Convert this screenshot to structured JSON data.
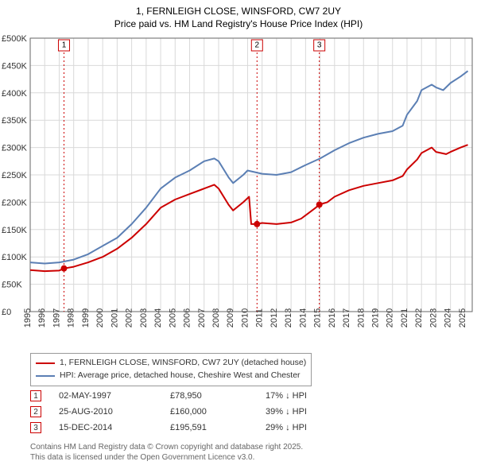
{
  "title_line1": "1, FERNLEIGH CLOSE, WINSFORD, CW7 2UY",
  "title_line2": "Price paid vs. HM Land Registry's House Price Index (HPI)",
  "chart": {
    "type": "line",
    "background_color": "#ffffff",
    "grid_color": "#d9d9d9",
    "axis_color": "#666666",
    "xlim": [
      1995,
      2025.5
    ],
    "ylim": [
      0,
      500000
    ],
    "ytick_step": 50000,
    "ytick_labels": [
      "£0",
      "£50K",
      "£100K",
      "£150K",
      "£200K",
      "£250K",
      "£300K",
      "£350K",
      "£400K",
      "£450K",
      "£500K"
    ],
    "xtick_step": 1,
    "xtick_labels": [
      "1995",
      "1996",
      "1997",
      "1998",
      "1999",
      "2000",
      "2001",
      "2002",
      "2003",
      "2004",
      "2005",
      "2006",
      "2007",
      "2008",
      "2009",
      "2010",
      "2011",
      "2012",
      "2013",
      "2014",
      "2015",
      "2016",
      "2017",
      "2018",
      "2019",
      "2020",
      "2021",
      "2022",
      "2023",
      "2024",
      "2025"
    ],
    "series": [
      {
        "name": "price_paid",
        "label": "1, FERNLEIGH CLOSE, WINSFORD, CW7 2UY (detached house)",
        "color": "#cc0000",
        "line_width": 2,
        "points": [
          [
            1995,
            76000
          ],
          [
            1996,
            74000
          ],
          [
            1997,
            75000
          ],
          [
            1997.33,
            78950
          ],
          [
            1998,
            82000
          ],
          [
            1999,
            90000
          ],
          [
            2000,
            100000
          ],
          [
            2001,
            115000
          ],
          [
            2002,
            135000
          ],
          [
            2003,
            160000
          ],
          [
            2004,
            190000
          ],
          [
            2005,
            205000
          ],
          [
            2006,
            215000
          ],
          [
            2007,
            225000
          ],
          [
            2007.7,
            232000
          ],
          [
            2008,
            225000
          ],
          [
            2008.7,
            195000
          ],
          [
            2009,
            185000
          ],
          [
            2009.7,
            200000
          ],
          [
            2010.1,
            210000
          ],
          [
            2010.25,
            160000
          ],
          [
            2010.65,
            160000
          ],
          [
            2011,
            162000
          ],
          [
            2012,
            160000
          ],
          [
            2013,
            163000
          ],
          [
            2013.7,
            170000
          ],
          [
            2014.2,
            180000
          ],
          [
            2014.7,
            190000
          ],
          [
            2014.95,
            195591
          ],
          [
            2015.5,
            200000
          ],
          [
            2016,
            210000
          ],
          [
            2017,
            222000
          ],
          [
            2018,
            230000
          ],
          [
            2019,
            235000
          ],
          [
            2020,
            240000
          ],
          [
            2020.7,
            248000
          ],
          [
            2021,
            260000
          ],
          [
            2021.7,
            278000
          ],
          [
            2022,
            290000
          ],
          [
            2022.7,
            300000
          ],
          [
            2023,
            292000
          ],
          [
            2023.7,
            288000
          ],
          [
            2024,
            292000
          ],
          [
            2024.7,
            300000
          ],
          [
            2025.2,
            305000
          ]
        ]
      },
      {
        "name": "hpi",
        "label": "HPI: Average price, detached house, Cheshire West and Chester",
        "color": "#5b7fb4",
        "line_width": 2,
        "points": [
          [
            1995,
            90000
          ],
          [
            1996,
            88000
          ],
          [
            1997,
            90000
          ],
          [
            1998,
            95000
          ],
          [
            1999,
            105000
          ],
          [
            2000,
            120000
          ],
          [
            2001,
            135000
          ],
          [
            2002,
            160000
          ],
          [
            2003,
            190000
          ],
          [
            2004,
            225000
          ],
          [
            2005,
            245000
          ],
          [
            2006,
            258000
          ],
          [
            2007,
            275000
          ],
          [
            2007.7,
            280000
          ],
          [
            2008,
            275000
          ],
          [
            2008.7,
            245000
          ],
          [
            2009,
            235000
          ],
          [
            2009.7,
            250000
          ],
          [
            2010,
            258000
          ],
          [
            2011,
            252000
          ],
          [
            2012,
            250000
          ],
          [
            2013,
            255000
          ],
          [
            2014,
            268000
          ],
          [
            2015,
            280000
          ],
          [
            2016,
            295000
          ],
          [
            2017,
            308000
          ],
          [
            2018,
            318000
          ],
          [
            2019,
            325000
          ],
          [
            2020,
            330000
          ],
          [
            2020.7,
            340000
          ],
          [
            2021,
            360000
          ],
          [
            2021.7,
            385000
          ],
          [
            2022,
            405000
          ],
          [
            2022.7,
            415000
          ],
          [
            2023,
            410000
          ],
          [
            2023.5,
            405000
          ],
          [
            2024,
            418000
          ],
          [
            2024.7,
            430000
          ],
          [
            2025.2,
            440000
          ]
        ]
      }
    ],
    "event_markers": [
      {
        "n": "1",
        "x": 1997.33,
        "y": 78950
      },
      {
        "n": "2",
        "x": 2010.65,
        "y": 160000
      },
      {
        "n": "3",
        "x": 2014.95,
        "y": 195591
      }
    ],
    "event_marker_color": "#cc0000",
    "event_line_color": "#cc0000",
    "event_point_radius": 4
  },
  "legend": [
    {
      "color": "#cc0000",
      "label": "1, FERNLEIGH CLOSE, WINSFORD, CW7 2UY (detached house)"
    },
    {
      "color": "#5b7fb4",
      "label": "HPI: Average price, detached house, Cheshire West and Chester"
    }
  ],
  "events_table": [
    {
      "n": "1",
      "date": "02-MAY-1997",
      "price": "£78,950",
      "pct": "17% ↓ HPI"
    },
    {
      "n": "2",
      "date": "25-AUG-2010",
      "price": "£160,000",
      "pct": "39% ↓ HPI"
    },
    {
      "n": "3",
      "date": "15-DEC-2014",
      "price": "£195,591",
      "pct": "29% ↓ HPI"
    }
  ],
  "footer_line1": "Contains HM Land Registry data © Crown copyright and database right 2025.",
  "footer_line2": "This data is licensed under the Open Government Licence v3.0."
}
